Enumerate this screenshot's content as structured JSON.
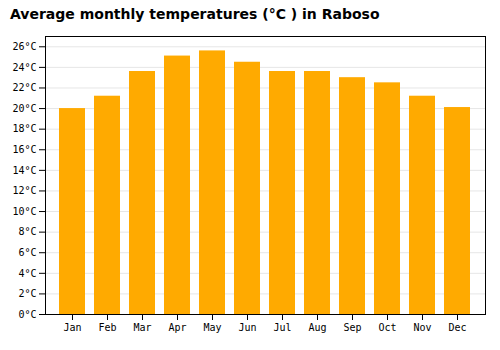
{
  "chart_data": {
    "type": "bar",
    "title": "Average monthly temperatures (°C ) in Raboso",
    "categories": [
      "Jan",
      "Feb",
      "Mar",
      "Apr",
      "May",
      "Jun",
      "Jul",
      "Aug",
      "Sep",
      "Oct",
      "Nov",
      "Dec"
    ],
    "values": [
      20.0,
      21.2,
      23.6,
      25.1,
      25.6,
      24.5,
      23.6,
      23.6,
      23.0,
      22.5,
      21.2,
      20.1
    ],
    "color": "#FFAA00",
    "ylim": [
      0,
      27
    ],
    "yticks": [
      {
        "value": 0,
        "label": "0°C"
      },
      {
        "value": 2,
        "label": "2°C"
      },
      {
        "value": 4,
        "label": "4°C"
      },
      {
        "value": 6,
        "label": "6°C"
      },
      {
        "value": 8,
        "label": "8°C"
      },
      {
        "value": 10,
        "label": "10°C"
      },
      {
        "value": 12,
        "label": "12°C"
      },
      {
        "value": 14,
        "label": "14°C"
      },
      {
        "value": 16,
        "label": "16°C"
      },
      {
        "value": 18,
        "label": "18°C"
      },
      {
        "value": 20,
        "label": "20°C"
      },
      {
        "value": 22,
        "label": "22°C"
      },
      {
        "value": 24,
        "label": "24°C"
      },
      {
        "value": 26,
        "label": "26°C"
      }
    ],
    "grid": true
  }
}
